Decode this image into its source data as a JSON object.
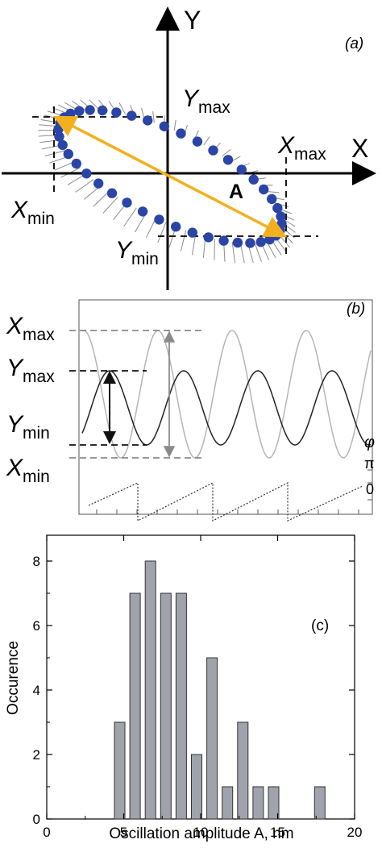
{
  "panel_a": {
    "panel_label": "(a)",
    "x_axis": "X",
    "y_axis": "Y",
    "xmax": {
      "base": "X",
      "sub": "max"
    },
    "xmin": {
      "base": "X",
      "sub": "min"
    },
    "ymax": {
      "base": "Y",
      "sub": "max"
    },
    "ymin": {
      "base": "Y",
      "sub": "min"
    },
    "amplitude": "A",
    "colors": {
      "dots": "#2b45a6",
      "arrow": "#f2b01e",
      "hatch": "#8c8c8c"
    }
  },
  "panel_b": {
    "panel_label": "(b)",
    "xmax": {
      "base": "X",
      "sub": "max"
    },
    "ymax": {
      "base": "Y",
      "sub": "max"
    },
    "ymin": {
      "base": "Y",
      "sub": "min"
    },
    "xmin": {
      "base": "X",
      "sub": "min"
    },
    "phase_symbol": "φ",
    "pi": "π",
    "zero": "0",
    "colors": {
      "x_signal": "#b5b5b5",
      "y_signal": "#222222",
      "phase": "#333333"
    }
  },
  "chart_data": {
    "type": "bar",
    "panel_label": "(c)",
    "xlabel": "Oscillation amplitude A, nm",
    "ylabel": "Occurence",
    "xlim": [
      0,
      20
    ],
    "ylim": [
      0,
      8.8
    ],
    "x_ticks": [
      "0",
      "5",
      "10",
      "15",
      "20"
    ],
    "y_ticks": [
      "0",
      "2",
      "4",
      "6",
      "8"
    ],
    "bin_width": 0.68,
    "bar_color": "#a0a3ab",
    "bins": [
      {
        "x": 4.4,
        "count": 3
      },
      {
        "x": 5.4,
        "count": 7
      },
      {
        "x": 6.4,
        "count": 8
      },
      {
        "x": 7.4,
        "count": 7
      },
      {
        "x": 8.4,
        "count": 7
      },
      {
        "x": 9.4,
        "count": 2
      },
      {
        "x": 10.4,
        "count": 5
      },
      {
        "x": 11.4,
        "count": 1
      },
      {
        "x": 12.4,
        "count": 3
      },
      {
        "x": 13.4,
        "count": 1
      },
      {
        "x": 14.4,
        "count": 1
      },
      {
        "x": 17.4,
        "count": 1
      }
    ]
  }
}
